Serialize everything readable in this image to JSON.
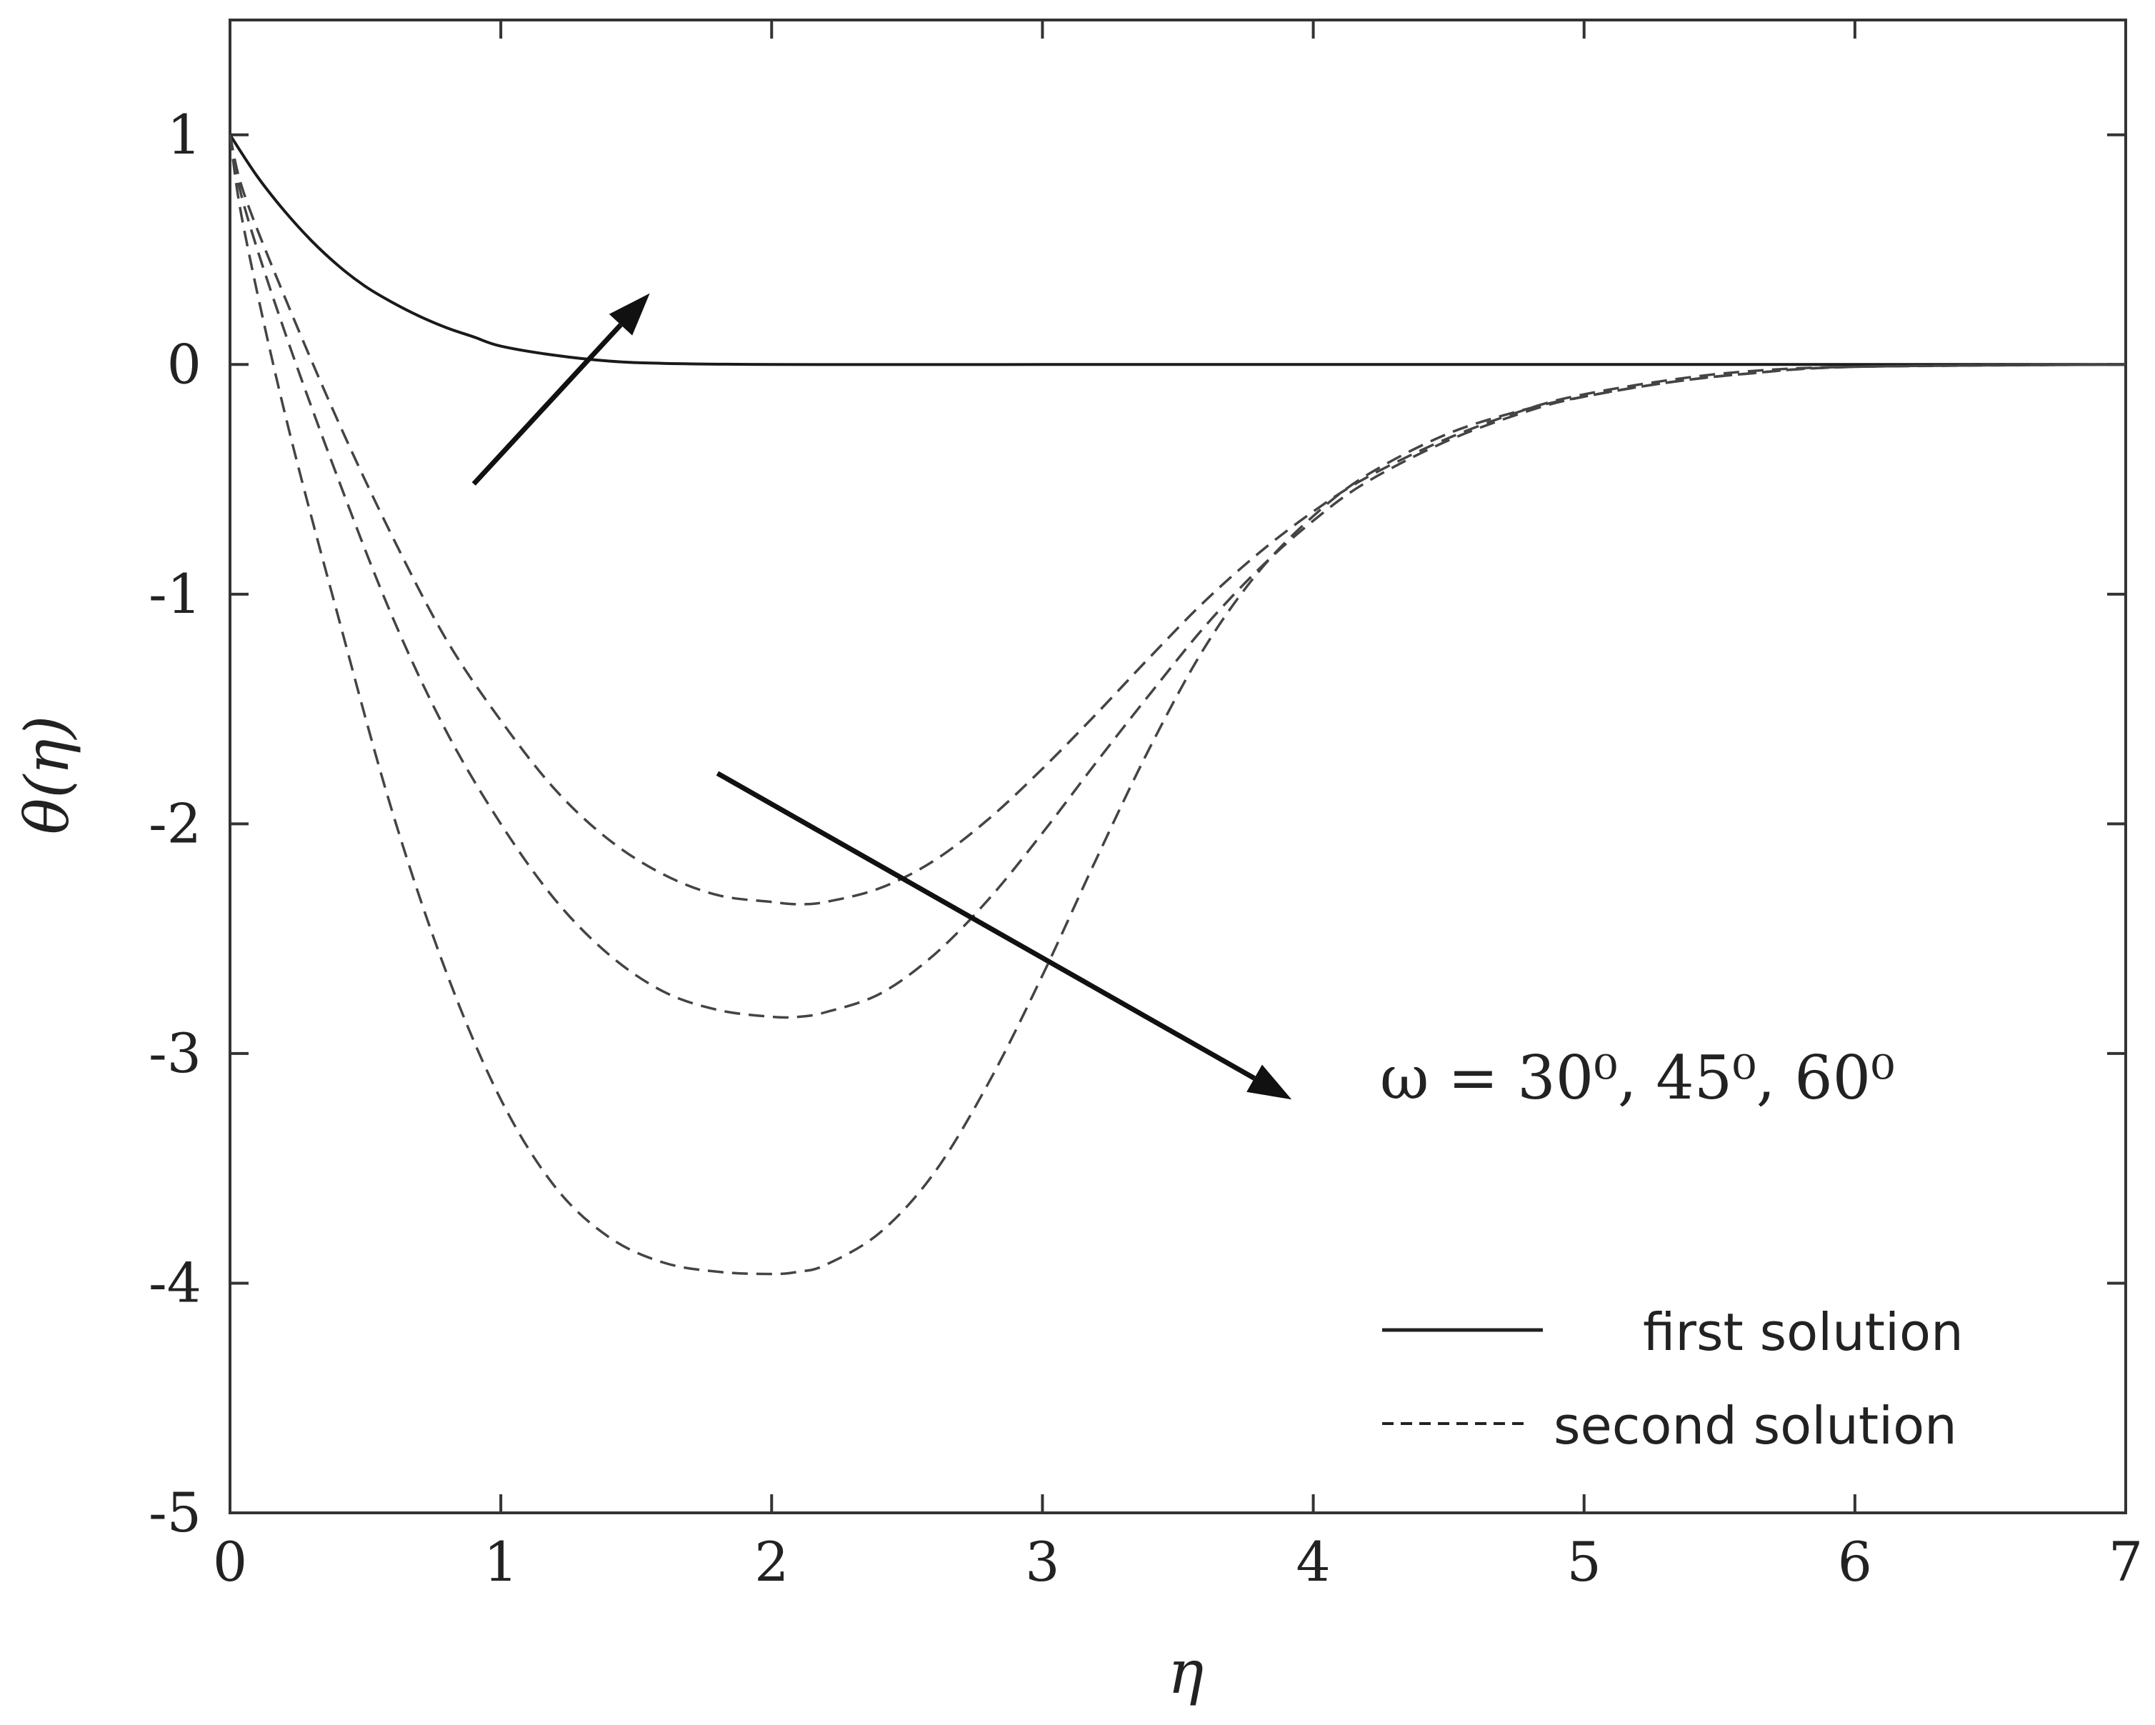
{
  "chart_data": {
    "type": "line",
    "title": "",
    "xlabel": "η",
    "ylabel": "θ(η)",
    "xlim": [
      0,
      7
    ],
    "ylim": [
      -5,
      1.5
    ],
    "xticks": [
      "0",
      "1",
      "2",
      "3",
      "4",
      "5",
      "6",
      "7"
    ],
    "yticks": [
      "1",
      "0",
      "-1",
      "-2",
      "-3",
      "-4",
      "-5"
    ],
    "grid": false,
    "legend_position": "bottom-right",
    "legend": [
      {
        "label": "first solution",
        "style": "solid"
      },
      {
        "label": "second solution",
        "style": "dashed"
      }
    ],
    "annotation": "ω = 30⁰, 45⁰, 60⁰",
    "series": [
      {
        "name": "first solution",
        "style": "solid",
        "x": [
          0,
          0.1,
          0.2,
          0.3,
          0.4,
          0.5,
          0.6,
          0.7,
          0.8,
          0.9,
          1.0,
          1.2,
          1.4,
          1.6,
          2.0,
          3,
          4,
          5,
          6,
          7
        ],
        "y": [
          1,
          0.82,
          0.67,
          0.54,
          0.43,
          0.34,
          0.27,
          0.21,
          0.16,
          0.12,
          0.08,
          0.04,
          0.015,
          0.005,
          0,
          0,
          0,
          0,
          0,
          0
        ]
      },
      {
        "name": "second solution",
        "style": "dashed",
        "x": [
          0,
          0.05,
          0.2,
          0.4,
          0.6,
          0.8,
          1.0,
          1.2,
          1.4,
          1.6,
          1.8,
          2.0,
          2.1,
          2.2,
          2.4,
          2.6,
          2.8,
          3.0,
          3.2,
          3.4,
          3.6,
          3.8,
          4.0,
          4.2,
          4.5,
          4.8,
          5.0,
          5.3,
          5.6,
          6.0,
          7.0
        ],
        "y": [
          1,
          0.75,
          0.3,
          -0.25,
          -0.75,
          -1.2,
          -1.55,
          -1.85,
          -2.07,
          -2.22,
          -2.31,
          -2.34,
          -2.35,
          -2.34,
          -2.28,
          -2.16,
          -1.98,
          -1.76,
          -1.52,
          -1.27,
          -1.03,
          -0.82,
          -0.64,
          -0.49,
          -0.32,
          -0.19,
          -0.13,
          -0.07,
          -0.03,
          -0.01,
          0
        ]
      },
      {
        "name": "second solution",
        "style": "dashed",
        "x": [
          0,
          0.05,
          0.2,
          0.4,
          0.6,
          0.8,
          1.0,
          1.2,
          1.4,
          1.6,
          1.8,
          2.0,
          2.1,
          2.2,
          2.4,
          2.6,
          2.8,
          3.0,
          3.2,
          3.4,
          3.6,
          3.8,
          4.0,
          4.2,
          4.5,
          4.8,
          5.0,
          5.3,
          5.6,
          6.0,
          7.0
        ],
        "y": [
          1,
          0.7,
          0.15,
          -0.5,
          -1.1,
          -1.6,
          -2.0,
          -2.33,
          -2.57,
          -2.73,
          -2.81,
          -2.84,
          -2.84,
          -2.82,
          -2.74,
          -2.57,
          -2.33,
          -2.04,
          -1.73,
          -1.43,
          -1.14,
          -0.89,
          -0.68,
          -0.51,
          -0.33,
          -0.2,
          -0.14,
          -0.08,
          -0.04,
          -0.01,
          0
        ]
      },
      {
        "name": "second solution",
        "style": "dashed",
        "x": [
          0,
          0.05,
          0.2,
          0.4,
          0.6,
          0.8,
          1.0,
          1.2,
          1.4,
          1.6,
          1.8,
          2.0,
          2.1,
          2.2,
          2.4,
          2.6,
          2.8,
          3.0,
          3.2,
          3.4,
          3.6,
          3.8,
          4.0,
          4.2,
          4.5,
          4.8,
          5.0,
          5.3,
          5.6,
          6.0,
          7.0
        ],
        "y": [
          1,
          0.6,
          -0.2,
          -1.1,
          -1.95,
          -2.65,
          -3.2,
          -3.58,
          -3.8,
          -3.91,
          -3.95,
          -3.96,
          -3.95,
          -3.92,
          -3.78,
          -3.52,
          -3.13,
          -2.66,
          -2.15,
          -1.66,
          -1.23,
          -0.9,
          -0.66,
          -0.48,
          -0.3,
          -0.19,
          -0.14,
          -0.08,
          -0.04,
          -0.01,
          0
        ]
      }
    ],
    "arrows": [
      {
        "from": [
          0.9,
          -0.52
        ],
        "to": [
          1.55,
          0.31
        ]
      },
      {
        "from": [
          1.8,
          -1.78
        ],
        "to": [
          3.92,
          -3.2
        ]
      }
    ]
  }
}
